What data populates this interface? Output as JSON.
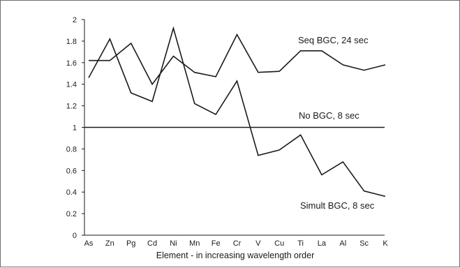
{
  "chart_data": {
    "type": "line",
    "xlabel": "Element - in increasing wavelength order",
    "ylabel": "",
    "title": "",
    "ylim": [
      0,
      2
    ],
    "yticks": [
      "0",
      "0.2",
      "0.4",
      "0.6",
      "0.8",
      "1",
      "1.2",
      "1.4",
      "1.6",
      "1.8",
      "2"
    ],
    "categories": [
      "As",
      "Zn",
      "Pg",
      "Cd",
      "Ni",
      "Mn",
      "Fe",
      "Cr",
      "V",
      "Cu",
      "Ti",
      "La",
      "Al",
      "Sc",
      "K"
    ],
    "grid": false,
    "series": [
      {
        "name": "Seq BGC, 24 sec",
        "values": [
          1.62,
          1.62,
          1.78,
          1.4,
          1.66,
          1.51,
          1.47,
          1.86,
          1.51,
          1.52,
          1.71,
          1.71,
          1.58,
          1.53,
          1.58
        ]
      },
      {
        "name": "No BGC, 8 sec",
        "values": [
          1,
          1,
          1,
          1,
          1,
          1,
          1,
          1,
          1,
          1,
          1,
          1,
          1,
          1,
          1
        ]
      },
      {
        "name": "Simult BGC, 8 sec",
        "values": [
          1.46,
          1.82,
          1.32,
          1.24,
          1.92,
          1.22,
          1.12,
          1.43,
          0.74,
          0.79,
          0.93,
          0.56,
          0.68,
          0.41,
          0.36
        ]
      }
    ],
    "annotations": [
      "Seq BGC, 24 sec",
      "No BGC, 8 sec",
      "Simult BGC, 8 sec"
    ]
  }
}
